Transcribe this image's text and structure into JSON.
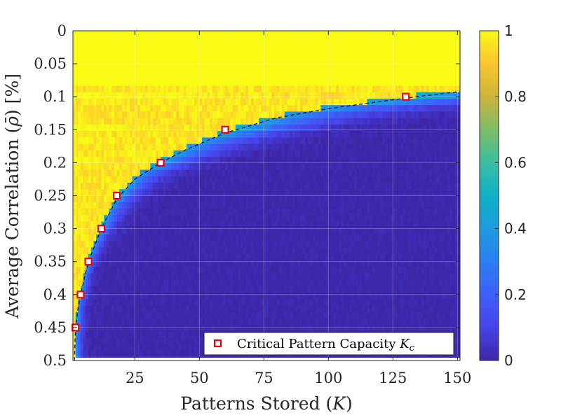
{
  "chart_data": {
    "type": "heatmap",
    "xlabel": "Patterns Stored (K)",
    "ylabel": "Average Correlation (ρ̄) [%]",
    "xlim": [
      1,
      151
    ],
    "ylim": [
      0,
      0.5
    ],
    "y_reversed": true,
    "x_ticks": [
      25,
      50,
      75,
      100,
      125,
      150
    ],
    "y_ticks": [
      0,
      0.05,
      0.1,
      0.15,
      0.2,
      0.25,
      0.3,
      0.35,
      0.4,
      0.45,
      0.5
    ],
    "x_tick_labels": [
      "25",
      "50",
      "75",
      "100",
      "125",
      "150"
    ],
    "y_tick_labels": [
      "0",
      "0.05",
      "0.1",
      "0.15",
      "0.2",
      "0.25",
      "0.3",
      "0.35",
      "0.4",
      "0.45",
      "0.5"
    ],
    "colorbar": {
      "range": [
        0,
        1
      ],
      "ticks": [
        0,
        0.2,
        0.4,
        0.6,
        0.8,
        1
      ],
      "tick_labels": [
        "0",
        "0.2",
        "0.4",
        "0.6",
        "0.8",
        "1"
      ],
      "colormap": "parula"
    },
    "grid": true,
    "legend": {
      "placement": "bottom-right",
      "entries": [
        {
          "label": "Critical Pattern Capacity K_c",
          "marker": "square",
          "color": "#e8000b"
        }
      ]
    },
    "series": [
      {
        "name": "Critical Pattern Capacity K_c",
        "type": "scatter",
        "x": [
          130,
          60,
          35,
          18,
          12,
          7,
          4,
          2
        ],
        "y": [
          0.1,
          0.15,
          0.2,
          0.25,
          0.3,
          0.35,
          0.4,
          0.45
        ]
      }
    ],
    "fit_curve": {
      "style": "dashed",
      "color": "#1a1a4d",
      "x": [
        1.5,
        2,
        3,
        4,
        6,
        8,
        12,
        18,
        25,
        35,
        45,
        60,
        80,
        100,
        130,
        151
      ],
      "y": [
        0.51,
        0.45,
        0.42,
        0.4,
        0.365,
        0.34,
        0.3,
        0.255,
        0.225,
        0.2,
        0.18,
        0.155,
        0.132,
        0.118,
        0.102,
        0.092
      ]
    }
  }
}
